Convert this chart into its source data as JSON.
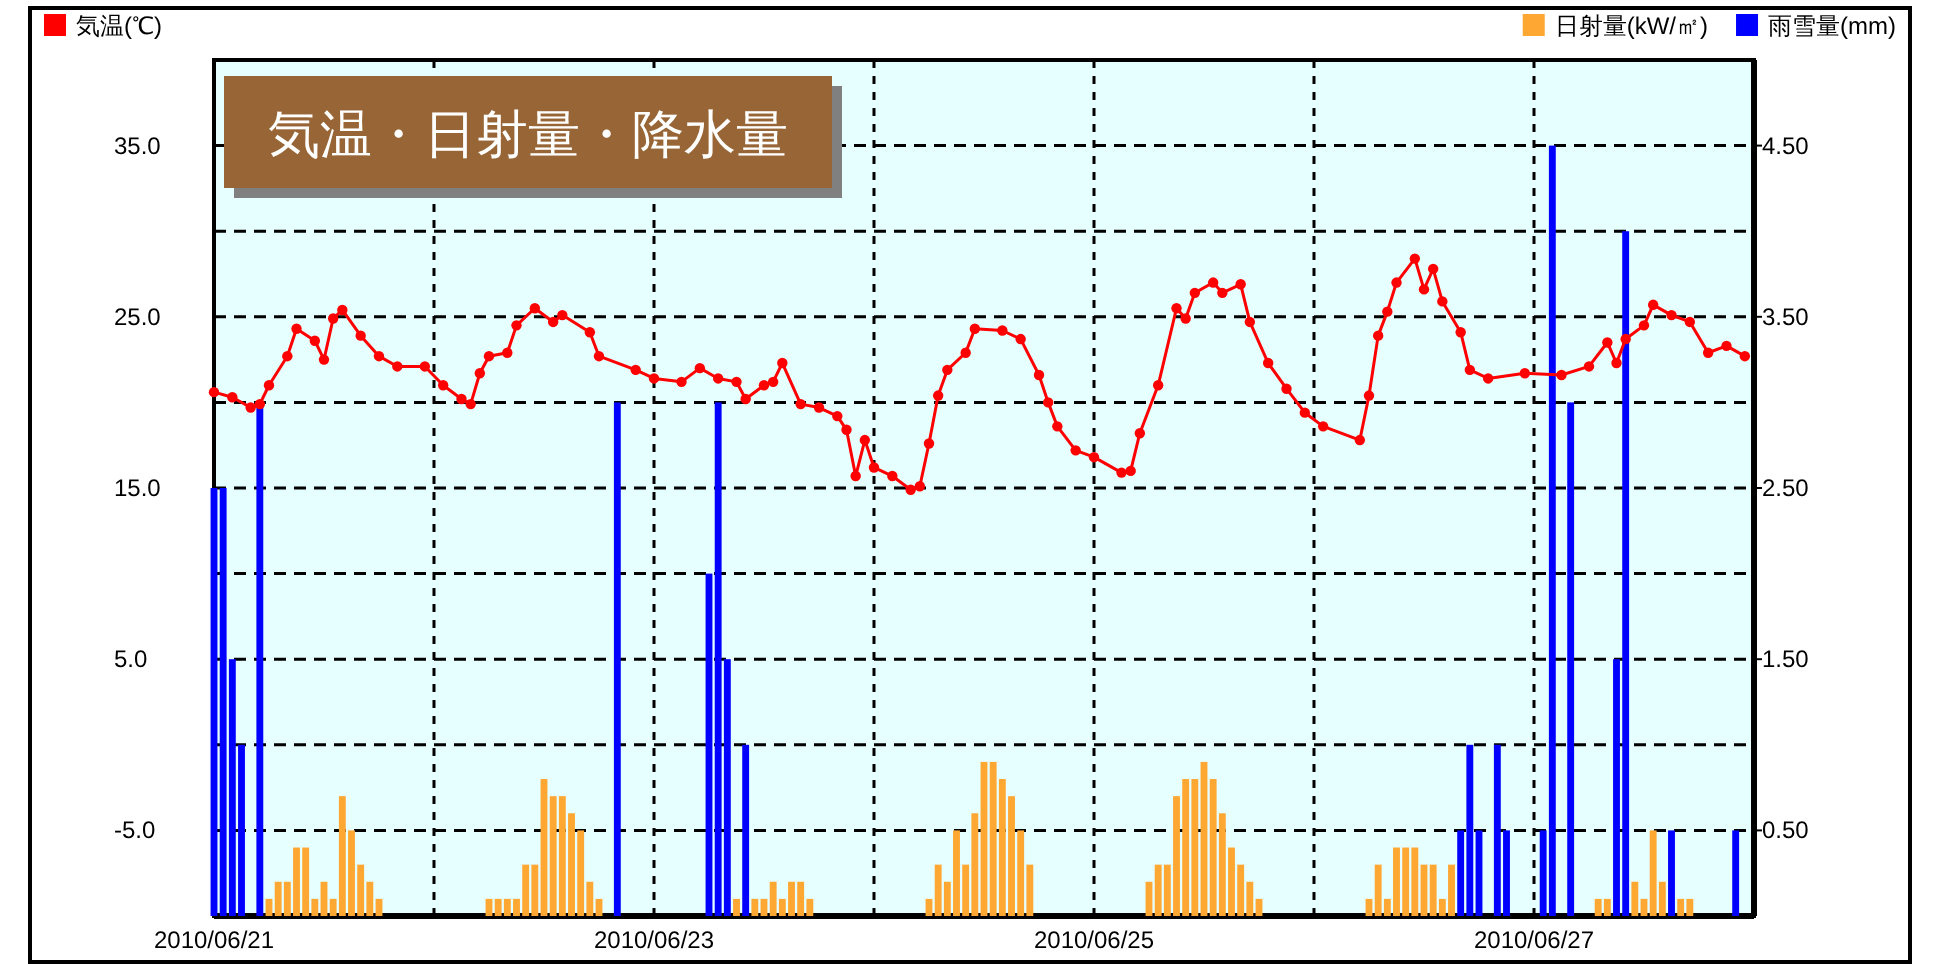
{
  "chart_data": {
    "type": "bar",
    "title": "気温・日射量・降水量",
    "legend": "top",
    "grid": true,
    "marker": "circle",
    "line_style": "solid",
    "xlim": [
      "2010-06-21T00:00",
      "2010-06-28T00:00"
    ],
    "xticks": [
      {
        "value": "2010-06-21T00:00",
        "label": "2010/06/21"
      },
      {
        "value": "2010-06-22T00:00",
        "label": null
      },
      {
        "value": "2010-06-23T00:00",
        "label": "2010/06/23"
      },
      {
        "value": "2010-06-24T00:00",
        "label": null
      },
      {
        "value": "2010-06-25T00:00",
        "label": "2010/06/25"
      },
      {
        "value": "2010-06-26T00:00",
        "label": null
      },
      {
        "value": "2010-06-27T00:00",
        "label": "2010/06/27"
      }
    ],
    "ylim": [
      -10,
      40
    ],
    "yticks": [
      {
        "value": -5,
        "label": "-5.0"
      },
      {
        "value": 0,
        "label": null
      },
      {
        "value": 5,
        "label": "5.0"
      },
      {
        "value": 10,
        "label": null
      },
      {
        "value": 15,
        "label": "15.0"
      },
      {
        "value": 20,
        "label": null
      },
      {
        "value": 25,
        "label": "25.0"
      },
      {
        "value": 30,
        "label": null
      },
      {
        "value": 35,
        "label": "35.0"
      }
    ],
    "y2lim": [
      0,
      5
    ],
    "y2ticks": [
      {
        "value": 0.5,
        "label": "0.50"
      },
      {
        "value": 1.5,
        "label": "1.50"
      },
      {
        "value": 2.5,
        "label": "2.50"
      },
      {
        "value": 3.5,
        "label": "3.50"
      },
      {
        "value": 4.5,
        "label": "4.50"
      }
    ],
    "series": [
      {
        "name": "日射量(kW/㎡)",
        "axis": "y2",
        "color": "#ffa733",
        "x": [
          "2010-06-21T06:00",
          "2010-06-21T07:00",
          "2010-06-21T08:00",
          "2010-06-21T09:00",
          "2010-06-21T10:00",
          "2010-06-21T11:00",
          "2010-06-21T12:00",
          "2010-06-21T13:00",
          "2010-06-21T14:00",
          "2010-06-21T15:00",
          "2010-06-21T16:00",
          "2010-06-21T17:00",
          "2010-06-21T18:00",
          "2010-06-22T06:00",
          "2010-06-22T07:00",
          "2010-06-22T08:00",
          "2010-06-22T09:00",
          "2010-06-22T10:00",
          "2010-06-22T11:00",
          "2010-06-22T12:00",
          "2010-06-22T13:00",
          "2010-06-22T14:00",
          "2010-06-22T15:00",
          "2010-06-22T16:00",
          "2010-06-22T17:00",
          "2010-06-22T18:00",
          "2010-06-23T09:00",
          "2010-06-23T11:00",
          "2010-06-23T12:00",
          "2010-06-23T13:00",
          "2010-06-23T14:00",
          "2010-06-23T15:00",
          "2010-06-23T16:00",
          "2010-06-23T17:00",
          "2010-06-24T06:00",
          "2010-06-24T07:00",
          "2010-06-24T08:00",
          "2010-06-24T09:00",
          "2010-06-24T10:00",
          "2010-06-24T11:00",
          "2010-06-24T12:00",
          "2010-06-24T13:00",
          "2010-06-24T14:00",
          "2010-06-24T15:00",
          "2010-06-24T16:00",
          "2010-06-24T17:00",
          "2010-06-25T06:00",
          "2010-06-25T07:00",
          "2010-06-25T08:00",
          "2010-06-25T09:00",
          "2010-06-25T10:00",
          "2010-06-25T11:00",
          "2010-06-25T12:00",
          "2010-06-25T13:00",
          "2010-06-25T14:00",
          "2010-06-25T15:00",
          "2010-06-25T16:00",
          "2010-06-25T17:00",
          "2010-06-25T18:00",
          "2010-06-26T06:00",
          "2010-06-26T07:00",
          "2010-06-26T08:00",
          "2010-06-26T09:00",
          "2010-06-26T10:00",
          "2010-06-26T11:00",
          "2010-06-26T12:00",
          "2010-06-26T13:00",
          "2010-06-26T14:00",
          "2010-06-26T15:00",
          "2010-06-27T07:00",
          "2010-06-27T08:00",
          "2010-06-27T11:00",
          "2010-06-27T12:00",
          "2010-06-27T13:00",
          "2010-06-27T14:00",
          "2010-06-27T16:00",
          "2010-06-27T17:00"
        ],
        "values": [
          0.1,
          0.2,
          0.2,
          0.4,
          0.4,
          0.1,
          0.2,
          0.1,
          0.7,
          0.5,
          0.3,
          0.2,
          0.1,
          0.1,
          0.1,
          0.1,
          0.1,
          0.3,
          0.3,
          0.8,
          0.7,
          0.7,
          0.6,
          0.5,
          0.2,
          0.1,
          0.1,
          0.1,
          0.1,
          0.2,
          0.1,
          0.2,
          0.2,
          0.1,
          0.1,
          0.3,
          0.2,
          0.5,
          0.3,
          0.6,
          0.9,
          0.9,
          0.8,
          0.7,
          0.5,
          0.3,
          0.2,
          0.3,
          0.3,
          0.7,
          0.8,
          0.8,
          0.9,
          0.8,
          0.6,
          0.4,
          0.3,
          0.2,
          0.1,
          0.1,
          0.3,
          0.1,
          0.4,
          0.4,
          0.4,
          0.3,
          0.3,
          0.1,
          0.3,
          0.1,
          0.1,
          0.2,
          0.1,
          0.5,
          0.2,
          0.1,
          0.1
        ]
      },
      {
        "name": "雨雪量(mm)",
        "axis": "y2",
        "color": "#0000ff",
        "x": [
          "2010-06-21T00:00",
          "2010-06-21T01:00",
          "2010-06-21T02:00",
          "2010-06-21T03:00",
          "2010-06-21T05:00",
          "2010-06-22T20:00",
          "2010-06-23T06:00",
          "2010-06-23T07:00",
          "2010-06-23T08:00",
          "2010-06-23T10:00",
          "2010-06-26T16:00",
          "2010-06-26T17:00",
          "2010-06-26T18:00",
          "2010-06-26T20:00",
          "2010-06-26T21:00",
          "2010-06-27T01:00",
          "2010-06-27T02:00",
          "2010-06-27T04:00",
          "2010-06-27T09:00",
          "2010-06-27T10:00",
          "2010-06-27T15:00",
          "2010-06-27T22:00"
        ],
        "values": [
          2.5,
          2.5,
          1.5,
          1.0,
          3.0,
          3.0,
          2.0,
          3.0,
          1.5,
          1.0,
          0.5,
          1.0,
          0.5,
          1.0,
          0.5,
          0.5,
          4.5,
          3.0,
          1.5,
          4.0,
          0.5,
          0.5
        ]
      },
      {
        "name": "気温(℃)",
        "type": "line",
        "color": "#ff0000",
        "x": [
          "2010-06-21T00:00",
          "2010-06-21T02:00",
          "2010-06-21T04:00",
          "2010-06-21T05:00",
          "2010-06-21T06:00",
          "2010-06-21T08:00",
          "2010-06-21T09:00",
          "2010-06-21T11:00",
          "2010-06-21T12:00",
          "2010-06-21T13:00",
          "2010-06-21T14:00",
          "2010-06-21T16:00",
          "2010-06-21T18:00",
          "2010-06-21T20:00",
          "2010-06-21T23:00",
          "2010-06-22T01:00",
          "2010-06-22T03:00",
          "2010-06-22T04:00",
          "2010-06-22T05:00",
          "2010-06-22T06:00",
          "2010-06-22T08:00",
          "2010-06-22T09:00",
          "2010-06-22T11:00",
          "2010-06-22T13:00",
          "2010-06-22T14:00",
          "2010-06-22T17:00",
          "2010-06-22T18:00",
          "2010-06-22T22:00",
          "2010-06-23T00:00",
          "2010-06-23T03:00",
          "2010-06-23T05:00",
          "2010-06-23T07:00",
          "2010-06-23T09:00",
          "2010-06-23T10:00",
          "2010-06-23T12:00",
          "2010-06-23T13:00",
          "2010-06-23T14:00",
          "2010-06-23T16:00",
          "2010-06-23T18:00",
          "2010-06-23T20:00",
          "2010-06-23T21:00",
          "2010-06-23T22:00",
          "2010-06-23T23:00",
          "2010-06-24T00:00",
          "2010-06-24T02:00",
          "2010-06-24T04:00",
          "2010-06-24T05:00",
          "2010-06-24T06:00",
          "2010-06-24T07:00",
          "2010-06-24T08:00",
          "2010-06-24T10:00",
          "2010-06-24T11:00",
          "2010-06-24T14:00",
          "2010-06-24T16:00",
          "2010-06-24T18:00",
          "2010-06-24T19:00",
          "2010-06-24T20:00",
          "2010-06-24T22:00",
          "2010-06-25T00:00",
          "2010-06-25T03:00",
          "2010-06-25T04:00",
          "2010-06-25T05:00",
          "2010-06-25T07:00",
          "2010-06-25T09:00",
          "2010-06-25T10:00",
          "2010-06-25T11:00",
          "2010-06-25T13:00",
          "2010-06-25T14:00",
          "2010-06-25T16:00",
          "2010-06-25T17:00",
          "2010-06-25T19:00",
          "2010-06-25T21:00",
          "2010-06-25T23:00",
          "2010-06-26T01:00",
          "2010-06-26T05:00",
          "2010-06-26T06:00",
          "2010-06-26T07:00",
          "2010-06-26T08:00",
          "2010-06-26T09:00",
          "2010-06-26T11:00",
          "2010-06-26T12:00",
          "2010-06-26T13:00",
          "2010-06-26T14:00",
          "2010-06-26T16:00",
          "2010-06-26T17:00",
          "2010-06-26T19:00",
          "2010-06-26T23:00",
          "2010-06-27T03:00",
          "2010-06-27T06:00",
          "2010-06-27T08:00",
          "2010-06-27T09:00",
          "2010-06-27T10:00",
          "2010-06-27T12:00",
          "2010-06-27T13:00",
          "2010-06-27T15:00",
          "2010-06-27T17:00",
          "2010-06-27T19:00",
          "2010-06-27T21:00",
          "2010-06-27T23:00"
        ],
        "values": [
          20.6,
          20.3,
          19.7,
          19.9,
          21.0,
          22.7,
          24.3,
          23.6,
          22.5,
          24.9,
          25.4,
          23.9,
          22.7,
          22.1,
          22.1,
          21.0,
          20.2,
          19.9,
          21.7,
          22.7,
          22.9,
          24.5,
          25.5,
          24.7,
          25.1,
          24.1,
          22.7,
          21.9,
          21.4,
          21.2,
          22.0,
          21.4,
          21.2,
          20.2,
          21.0,
          21.2,
          22.3,
          19.9,
          19.7,
          19.2,
          18.4,
          15.7,
          17.8,
          16.2,
          15.7,
          14.9,
          15.1,
          17.6,
          20.4,
          21.9,
          22.9,
          24.3,
          24.2,
          23.7,
          21.6,
          20.0,
          18.6,
          17.2,
          16.8,
          15.9,
          16.0,
          18.2,
          21.0,
          25.5,
          24.9,
          26.4,
          27.0,
          26.4,
          26.9,
          24.7,
          22.3,
          20.8,
          19.4,
          18.6,
          17.8,
          20.4,
          23.9,
          25.3,
          27.0,
          28.4,
          26.6,
          27.8,
          25.9,
          24.1,
          21.9,
          21.4,
          21.7,
          21.6,
          22.1,
          23.5,
          22.3,
          23.7,
          24.5,
          25.7,
          25.1,
          24.7,
          22.9,
          23.3,
          22.7
        ]
      }
    ]
  }
}
